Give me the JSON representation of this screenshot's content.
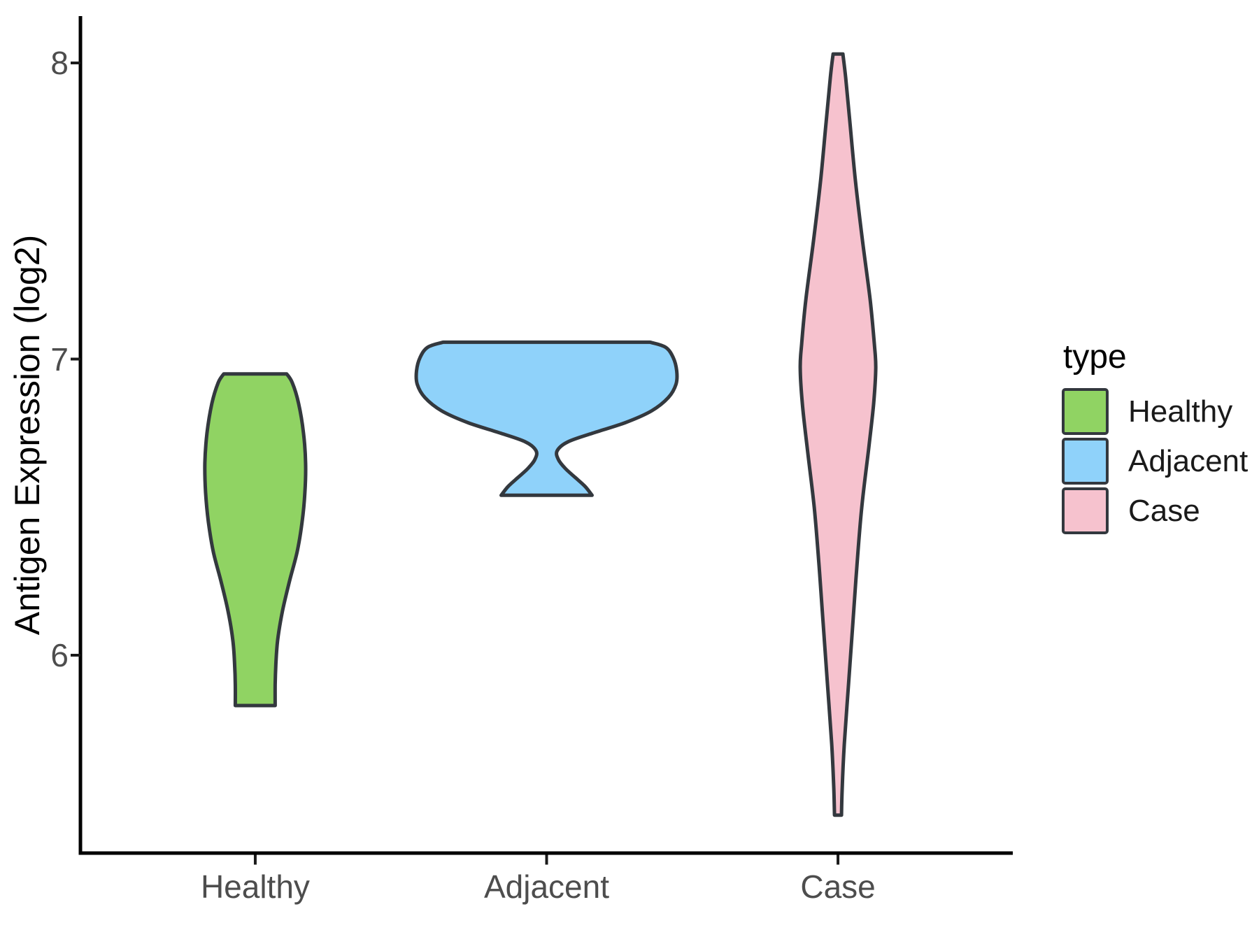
{
  "chart_data": {
    "type": "violin",
    "title": "",
    "xlabel": "",
    "ylabel": "Antigen Expression (log2)",
    "yticks": [
      "6",
      "7",
      "8"
    ],
    "ytick_values": [
      6,
      7,
      8
    ],
    "ylim": [
      5.33,
      8.16
    ],
    "grid": "off",
    "categories": [
      "Healthy",
      "Adjacent",
      "Case"
    ],
    "legend": {
      "title": "type",
      "position": "right",
      "entries": [
        {
          "label": "Healthy",
          "color": "#90d363"
        },
        {
          "label": "Adjacent",
          "color": "#8fd2fa"
        },
        {
          "label": "Case",
          "color": "#f6c2ce"
        }
      ]
    },
    "series": [
      {
        "name": "Healthy",
        "color": "#90d363",
        "value_range": [
          5.83,
          6.95
        ],
        "profile": [
          [
            6.95,
            45
          ],
          [
            6.92,
            53
          ],
          [
            6.85,
            62
          ],
          [
            6.75,
            69
          ],
          [
            6.65,
            72
          ],
          [
            6.55,
            71
          ],
          [
            6.45,
            67
          ],
          [
            6.35,
            60
          ],
          [
            6.25,
            49
          ],
          [
            6.15,
            39
          ],
          [
            6.05,
            32
          ],
          [
            5.97,
            29.5
          ],
          [
            5.9,
            28.5
          ],
          [
            5.83,
            28.5
          ]
        ]
      },
      {
        "name": "Adjacent",
        "color": "#8fd2fa",
        "value_range": [
          6.54,
          7.06
        ],
        "profile": [
          [
            7.057,
            148
          ],
          [
            7.04,
            170
          ],
          [
            7.005,
            181
          ],
          [
            6.96,
            186
          ],
          [
            6.915,
            185
          ],
          [
            6.87,
            174
          ],
          [
            6.825,
            150
          ],
          [
            6.785,
            112
          ],
          [
            6.75,
            66
          ],
          [
            6.72,
            30
          ],
          [
            6.69,
            15
          ],
          [
            6.66,
            17
          ],
          [
            6.63,
            27
          ],
          [
            6.6,
            41
          ],
          [
            6.57,
            55
          ],
          [
            6.54,
            65
          ]
        ]
      },
      {
        "name": "Case",
        "color": "#f6c2ce",
        "value_range": [
          5.46,
          8.03
        ],
        "profile": [
          [
            8.03,
            7
          ],
          [
            7.95,
            11
          ],
          [
            7.8,
            17
          ],
          [
            7.6,
            25
          ],
          [
            7.4,
            35
          ],
          [
            7.2,
            46
          ],
          [
            7.05,
            52
          ],
          [
            6.97,
            54
          ],
          [
            6.85,
            51
          ],
          [
            6.7,
            44
          ],
          [
            6.5,
            34
          ],
          [
            6.3,
            27
          ],
          [
            6.1,
            21
          ],
          [
            5.9,
            15
          ],
          [
            5.7,
            9
          ],
          [
            5.55,
            6
          ],
          [
            5.46,
            5
          ]
        ]
      }
    ],
    "style": {
      "violin_stroke": "#33383e",
      "axis_color": "#000000",
      "tick_color": "#1a1a1a",
      "tick_label_color": "#4d4d4d"
    }
  }
}
